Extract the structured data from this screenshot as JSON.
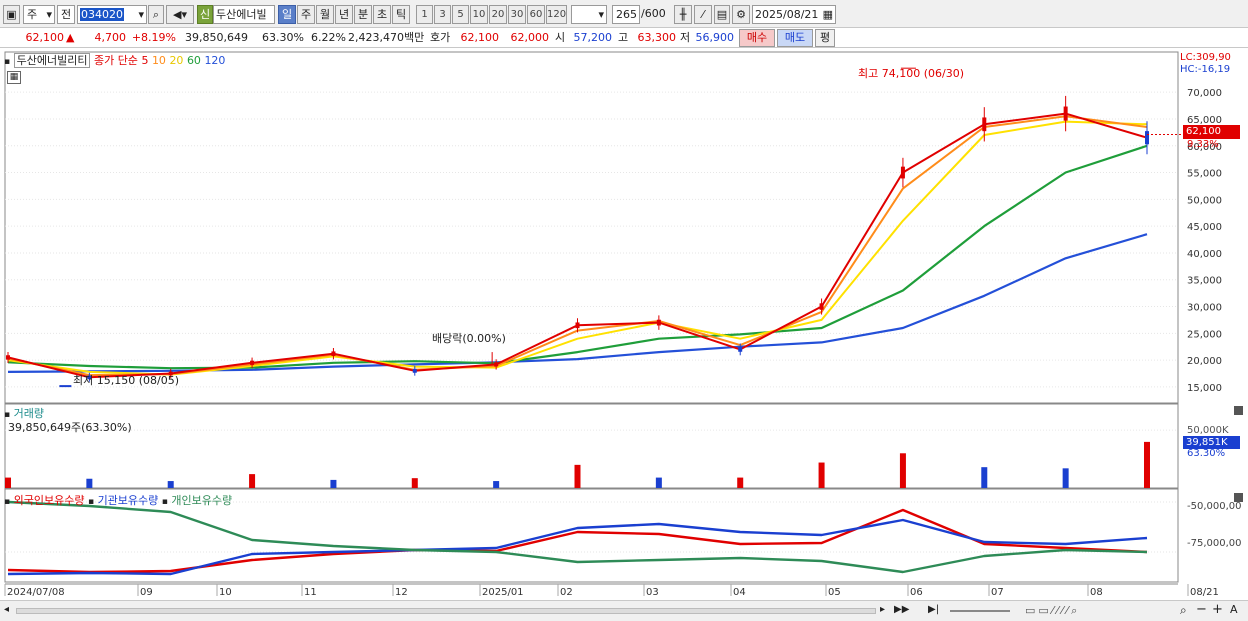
{
  "toolbar": {
    "market": "주",
    "prev": "전",
    "code": "034020",
    "name": "두산에너빌",
    "credit_badge": "신",
    "periods": [
      "일",
      "주",
      "월",
      "년",
      "분",
      "초",
      "틱"
    ],
    "active_period": "일",
    "intervals": [
      "1",
      "3",
      "5",
      "10",
      "20",
      "30",
      "60",
      "120"
    ],
    "count": "265",
    "count_max": "/600",
    "date": "2025/08/21"
  },
  "quote": {
    "price": "62,100",
    "change": "4,700",
    "change_pct": "+8.19%",
    "volume": "39,850,649",
    "turnover_pct": "63.30%",
    "pct2": "6.22%",
    "amount": "2,423,470백만",
    "bid_label": "호가",
    "ask": "62,100",
    "bid": "62,000",
    "open_label": "시",
    "open": "57,200",
    "high_label": "고",
    "high": "63,300",
    "low_label": "저",
    "low": "56,900",
    "buy_btn": "매수",
    "sell_btn": "매도",
    "eval_btn": "평"
  },
  "price_panel": {
    "stock_name": "두산에너빌리티",
    "legend_prefix": "종가 단순",
    "ma_labels": [
      "5",
      "10",
      "20",
      "60",
      "120"
    ],
    "lc": "LC:309,90",
    "hc": "HC:-16,19",
    "high_note": "최고 74,100 (06/30)",
    "low_note": "최저 15,150 (08/05)",
    "div_note": "배당락(0.00%)",
    "current_price_tag": "62,100",
    "current_pct_tag": "9.33%"
  },
  "volume_panel": {
    "title": "거래량",
    "info": "39,850,649주(63.30%)",
    "axis_label": "50,000K",
    "tag_value": "39,851K",
    "tag_pct": "63.30%"
  },
  "holdings_panel": {
    "series_names": [
      "외국인보유수량",
      "기관보유수량",
      "개인보유수량"
    ],
    "tick_labels": [
      "-50,000,00",
      "-75,000,00"
    ]
  },
  "x_axis": {
    "labels": [
      "2024/07/08",
      "09",
      "10",
      "11",
      "12",
      "2025/01",
      "02",
      "03",
      "04",
      "05",
      "06",
      "07",
      "08",
      "08/21"
    ]
  },
  "colors": {
    "up": "#e00000",
    "down": "#1a3fd0",
    "ma5": "#e00000",
    "ma10": "#ff8c1a",
    "ma20": "#ffe100",
    "ma60": "#1f9e3a",
    "ma120": "#2450d8",
    "foreign": "#e00000",
    "institution": "#1a3fd0",
    "individual": "#2e8b57"
  },
  "chart_data": [
    {
      "type": "line",
      "title": "두산에너빌리티 (034020) 일봉",
      "xlabel": "",
      "ylabel": "",
      "ylim": [
        12000,
        76000
      ],
      "y_ticks": [
        15000,
        20000,
        25000,
        30000,
        35000,
        40000,
        45000,
        50000,
        55000,
        60000,
        65000,
        70000
      ],
      "y_tick_labels": [
        "15,000",
        "20,000",
        "25,000",
        "30,000",
        "35,000",
        "40,000",
        "45,000",
        "50,000",
        "55,000",
        "60,000",
        "65,000",
        "70,000"
      ],
      "x": [
        "2024/07",
        "2024/08",
        "2024/09",
        "2024/10",
        "2024/11",
        "2024/12",
        "2025/01",
        "2025/02",
        "2025/03",
        "2025/04",
        "2025/05",
        "2025/06",
        "2025/07",
        "2025/08",
        "2025/08/21"
      ],
      "series": [
        {
          "name": "5",
          "values": [
            20500,
            16800,
            17500,
            19500,
            21200,
            18000,
            19200,
            26500,
            27000,
            22000,
            30000,
            55000,
            64000,
            66000,
            61500
          ]
        },
        {
          "name": "10",
          "values": [
            20300,
            17200,
            17400,
            19200,
            21000,
            18200,
            18900,
            25500,
            27300,
            22800,
            29000,
            52000,
            63500,
            65500,
            63500
          ]
        },
        {
          "name": "20",
          "values": [
            20000,
            17800,
            17300,
            18900,
            20700,
            18800,
            18600,
            24000,
            27000,
            24000,
            27500,
            46000,
            62000,
            64500,
            64000
          ]
        },
        {
          "name": "60",
          "values": [
            19600,
            18900,
            18500,
            18600,
            19500,
            19800,
            19400,
            21500,
            24000,
            24800,
            26000,
            33000,
            45000,
            55000,
            60000
          ]
        },
        {
          "name": "120",
          "values": [
            17800,
            17900,
            18000,
            18200,
            18800,
            19200,
            19600,
            20200,
            21500,
            22500,
            23300,
            26000,
            32000,
            39000,
            43500
          ]
        }
      ],
      "annotations": [
        "최고 74,100 (06/30)",
        "최저 15,150 (08/05)",
        "배당락(0.00%)"
      ],
      "last_close": 62100
    },
    {
      "type": "bar",
      "title": "거래량",
      "ylim": [
        0,
        70000
      ],
      "unit": "K",
      "x": [
        "2024/07",
        "2024/08",
        "2024/09",
        "2024/10",
        "2024/11",
        "2024/12",
        "2025/01",
        "2025/02",
        "2025/03",
        "2025/04",
        "2025/05",
        "2025/06",
        "2025/07",
        "2025/08",
        "2025/08/21"
      ],
      "values": [
        9000,
        8000,
        6000,
        12000,
        7000,
        8500,
        6000,
        20000,
        9000,
        9000,
        22000,
        30000,
        18000,
        17000,
        39851
      ]
    },
    {
      "type": "line",
      "title": "보유수량",
      "ylim": [
        -90000000,
        -45000000
      ],
      "x": [
        "2024/07",
        "2024/08",
        "2024/09",
        "2024/10",
        "2024/11",
        "2024/12",
        "2025/01",
        "2025/02",
        "2025/03",
        "2025/04",
        "2025/05",
        "2025/06",
        "2025/07",
        "2025/08",
        "2025/08/21"
      ],
      "series": [
        {
          "name": "외국인보유수량",
          "values": [
            -84000000,
            -85000000,
            -84500000,
            -79000000,
            -76000000,
            -74000000,
            -74500000,
            -65000000,
            -66000000,
            -71000000,
            -70500000,
            -54000000,
            -71000000,
            -73000000,
            -75000000
          ]
        },
        {
          "name": "기관보유수량",
          "values": [
            -86000000,
            -85500000,
            -86000000,
            -76000000,
            -75000000,
            -74000000,
            -73000000,
            -63000000,
            -61000000,
            -65000000,
            -66500000,
            -59000000,
            -70000000,
            -71000000,
            -68000000
          ]
        },
        {
          "name": "개인보유수량",
          "values": [
            -50000000,
            -52000000,
            -55000000,
            -69000000,
            -72000000,
            -74000000,
            -75000000,
            -80000000,
            -79000000,
            -78000000,
            -79500000,
            -85000000,
            -77000000,
            -74000000,
            -75000000
          ]
        }
      ]
    }
  ]
}
